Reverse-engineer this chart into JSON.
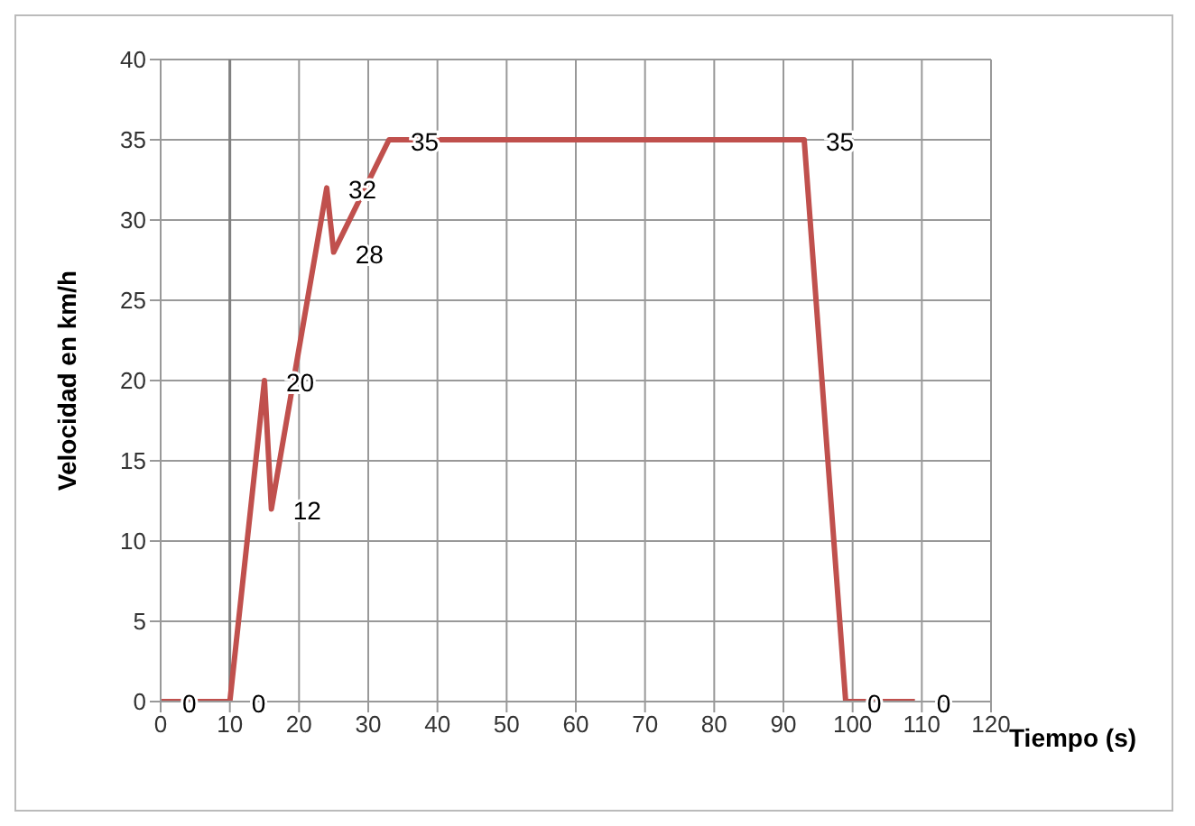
{
  "chart_data": {
    "type": "line",
    "xlabel": "Tiempo (s)",
    "ylabel": "Velocidad en km/h",
    "x": [
      0,
      10,
      15,
      16,
      24,
      25,
      33,
      93,
      99,
      109
    ],
    "series": [
      {
        "color": "#c0504d",
        "values": [
          0,
          0,
          20,
          12,
          32,
          28,
          35,
          35,
          0,
          0
        ]
      }
    ],
    "xlim": [
      0,
      120
    ],
    "xticks": [
      0,
      10,
      20,
      30,
      40,
      50,
      60,
      70,
      80,
      90,
      100,
      110,
      120
    ],
    "ylim": [
      0,
      40
    ],
    "yticks": [
      0,
      5,
      10,
      15,
      20,
      25,
      30,
      35,
      40
    ],
    "grid": true,
    "data_labels": true,
    "marker": "none",
    "line_style": "solid",
    "ref_lines": [
      {
        "axis": "x",
        "value": 10,
        "color": "#808080"
      }
    ]
  }
}
